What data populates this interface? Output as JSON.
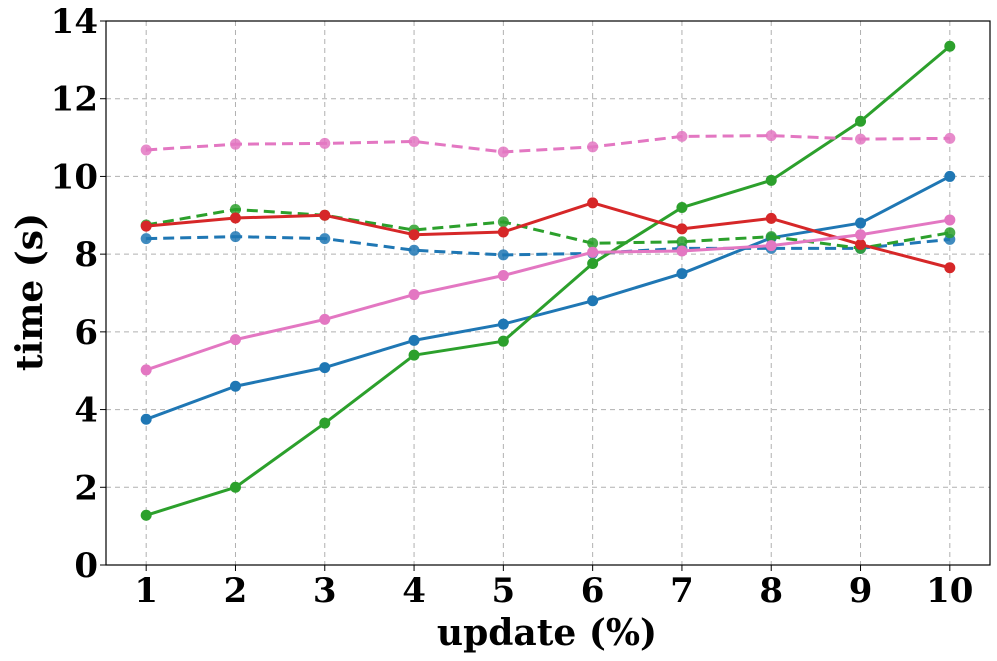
{
  "chart_data": {
    "type": "line",
    "title": "",
    "xlabel": "update (%)",
    "ylabel": "time (s)",
    "x": [
      1,
      2,
      3,
      4,
      5,
      6,
      7,
      8,
      9,
      10
    ],
    "xlim": [
      0.55,
      10.45
    ],
    "ylim": [
      0,
      14
    ],
    "xticks": [
      "1",
      "2",
      "3",
      "4",
      "5",
      "6",
      "7",
      "8",
      "9",
      "10"
    ],
    "yticks": [
      "0",
      "2",
      "4",
      "6",
      "8",
      "10",
      "12",
      "14"
    ],
    "grid": true,
    "legend": "none",
    "series": [
      {
        "color": "#1f77b4",
        "style": "solid",
        "values": [
          3.75,
          4.6,
          5.08,
          5.78,
          6.2,
          6.8,
          7.5,
          8.42,
          8.8,
          10.0
        ]
      },
      {
        "color": "#1f77b4",
        "style": "dashed",
        "values": [
          8.4,
          8.45,
          8.4,
          8.1,
          7.98,
          8.02,
          8.15,
          8.15,
          8.15,
          8.38
        ]
      },
      {
        "color": "#2ca02c",
        "style": "solid",
        "values": [
          1.28,
          2.0,
          3.65,
          5.4,
          5.76,
          7.76,
          9.2,
          9.9,
          11.42,
          13.35
        ]
      },
      {
        "color": "#2ca02c",
        "style": "dashed",
        "values": [
          8.75,
          9.15,
          9.0,
          8.62,
          8.83,
          8.28,
          8.32,
          8.45,
          8.15,
          8.55
        ]
      },
      {
        "color": "#d62728",
        "style": "solid",
        "values": [
          8.72,
          8.93,
          9.0,
          8.5,
          8.57,
          9.32,
          8.65,
          8.92,
          8.25,
          7.65
        ]
      },
      {
        "color": "#e377c2",
        "style": "solid",
        "values": [
          5.02,
          5.8,
          6.32,
          6.96,
          7.45,
          8.05,
          8.08,
          8.22,
          8.5,
          8.88
        ]
      },
      {
        "color": "#e377c2",
        "style": "dashed",
        "values": [
          10.68,
          10.83,
          10.85,
          10.9,
          10.63,
          10.76,
          11.03,
          11.05,
          10.96,
          10.98
        ]
      }
    ]
  }
}
